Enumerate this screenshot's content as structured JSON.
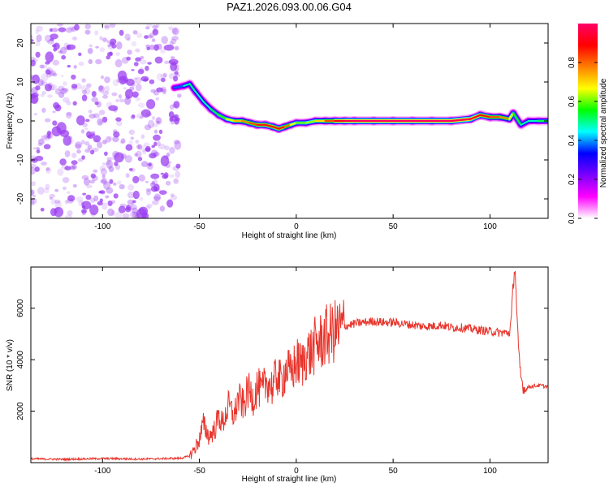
{
  "title": "PAZ1.2026.093.00.06.G04",
  "colors": {
    "snr_line": "#e8352c",
    "speckle": "#9b3ff0",
    "axis": "#000000",
    "colormap": [
      "#ffffff",
      "#ff00ff",
      "#7a00ff",
      "#0000ff",
      "#00ffff",
      "#00ff00",
      "#ffff00",
      "#ff7f00",
      "#ff0000",
      "#ff0066"
    ]
  },
  "chart_data": [
    {
      "type": "heatmap",
      "title": "PAZ1.2026.093.00.06.G04",
      "xlabel": "Height of straight line (km)",
      "ylabel": "Frequency (Hz)",
      "xlim": [
        -137,
        130
      ],
      "ylim": [
        -25,
        25
      ],
      "xticks": [
        -100,
        -50,
        0,
        50,
        100
      ],
      "yticks": [
        -20,
        -10,
        0,
        10,
        20
      ],
      "noise_region_x": [
        -137,
        -60
      ],
      "ridge": {
        "x": [
          -63,
          -58,
          -55,
          -52,
          -48,
          -44,
          -40,
          -36,
          -32,
          -28,
          -24,
          -20,
          -16,
          -12,
          -9,
          -6,
          -3,
          0,
          5,
          10,
          15,
          20,
          25,
          30,
          40,
          50,
          60,
          70,
          80,
          90,
          95,
          100,
          105,
          110,
          112,
          116,
          120,
          125,
          130
        ],
        "y": [
          8.5,
          9,
          9.5,
          7.5,
          5,
          3,
          1.5,
          0.5,
          0,
          0,
          -0.5,
          -1,
          -1,
          -1.5,
          -2,
          -1.5,
          -1,
          -0.5,
          -0.5,
          0,
          0,
          0,
          0,
          0,
          0,
          0,
          0,
          0,
          0,
          0.5,
          1.5,
          1,
          1,
          0.5,
          2,
          -1,
          0,
          0,
          0
        ],
        "amplitude": [
          0.3,
          0.45,
          0.5,
          0.5,
          0.45,
          0.5,
          0.55,
          0.6,
          0.7,
          0.75,
          0.8,
          0.85,
          0.9,
          0.85,
          0.9,
          0.85,
          0.75,
          0.6,
          0.6,
          0.65,
          0.75,
          0.9,
          0.95,
          1.0,
          1.0,
          1.0,
          1.0,
          1.0,
          1.0,
          0.95,
          0.9,
          0.85,
          0.8,
          0.75,
          0.6,
          0.5,
          0.45,
          0.5,
          0.55
        ]
      },
      "colorbar": {
        "label": "Normalized spectral amplitude",
        "range": [
          0,
          1
        ],
        "ticks": [
          "0.0",
          "0.2",
          "0.4",
          "0.6",
          "0.8"
        ]
      }
    },
    {
      "type": "line",
      "xlabel": "Height of straight line (km)",
      "ylabel": "SNR (10 * v/v)",
      "xlim": [
        -137,
        130
      ],
      "ylim": [
        0,
        7600
      ],
      "xticks": [
        -100,
        -50,
        0,
        50,
        100
      ],
      "yticks": [
        2000,
        4000,
        6000
      ],
      "series": [
        {
          "name": "SNR",
          "x": [
            -137,
            -120,
            -100,
            -80,
            -60,
            -55,
            -52,
            -50,
            -48,
            -45,
            -42,
            -40,
            -38,
            -35,
            -32,
            -30,
            -27,
            -25,
            -22,
            -20,
            -18,
            -15,
            -12,
            -10,
            -8,
            -5,
            -3,
            0,
            3,
            5,
            8,
            10,
            13,
            15,
            18,
            20,
            25,
            30,
            35,
            40,
            45,
            50,
            55,
            60,
            65,
            70,
            75,
            80,
            85,
            90,
            95,
            100,
            105,
            110,
            111,
            112,
            113,
            114,
            115,
            116,
            117,
            118,
            120,
            125,
            130
          ],
          "y": [
            150,
            130,
            160,
            140,
            170,
            250,
            600,
            900,
            1500,
            1000,
            1300,
            1800,
            1500,
            2200,
            1800,
            2500,
            2200,
            2800,
            2500,
            3000,
            2700,
            3200,
            2900,
            3500,
            3100,
            3700,
            3400,
            3900,
            3800,
            4200,
            4300,
            4600,
            4700,
            4900,
            5000,
            5100,
            5300,
            5400,
            5450,
            5500,
            5450,
            5450,
            5400,
            5350,
            5300,
            5300,
            5350,
            5250,
            5250,
            5200,
            5150,
            5100,
            5050,
            5050,
            5500,
            7000,
            7600,
            5500,
            4000,
            3300,
            3000,
            2800,
            2950,
            3000,
            2950
          ]
        }
      ]
    }
  ]
}
